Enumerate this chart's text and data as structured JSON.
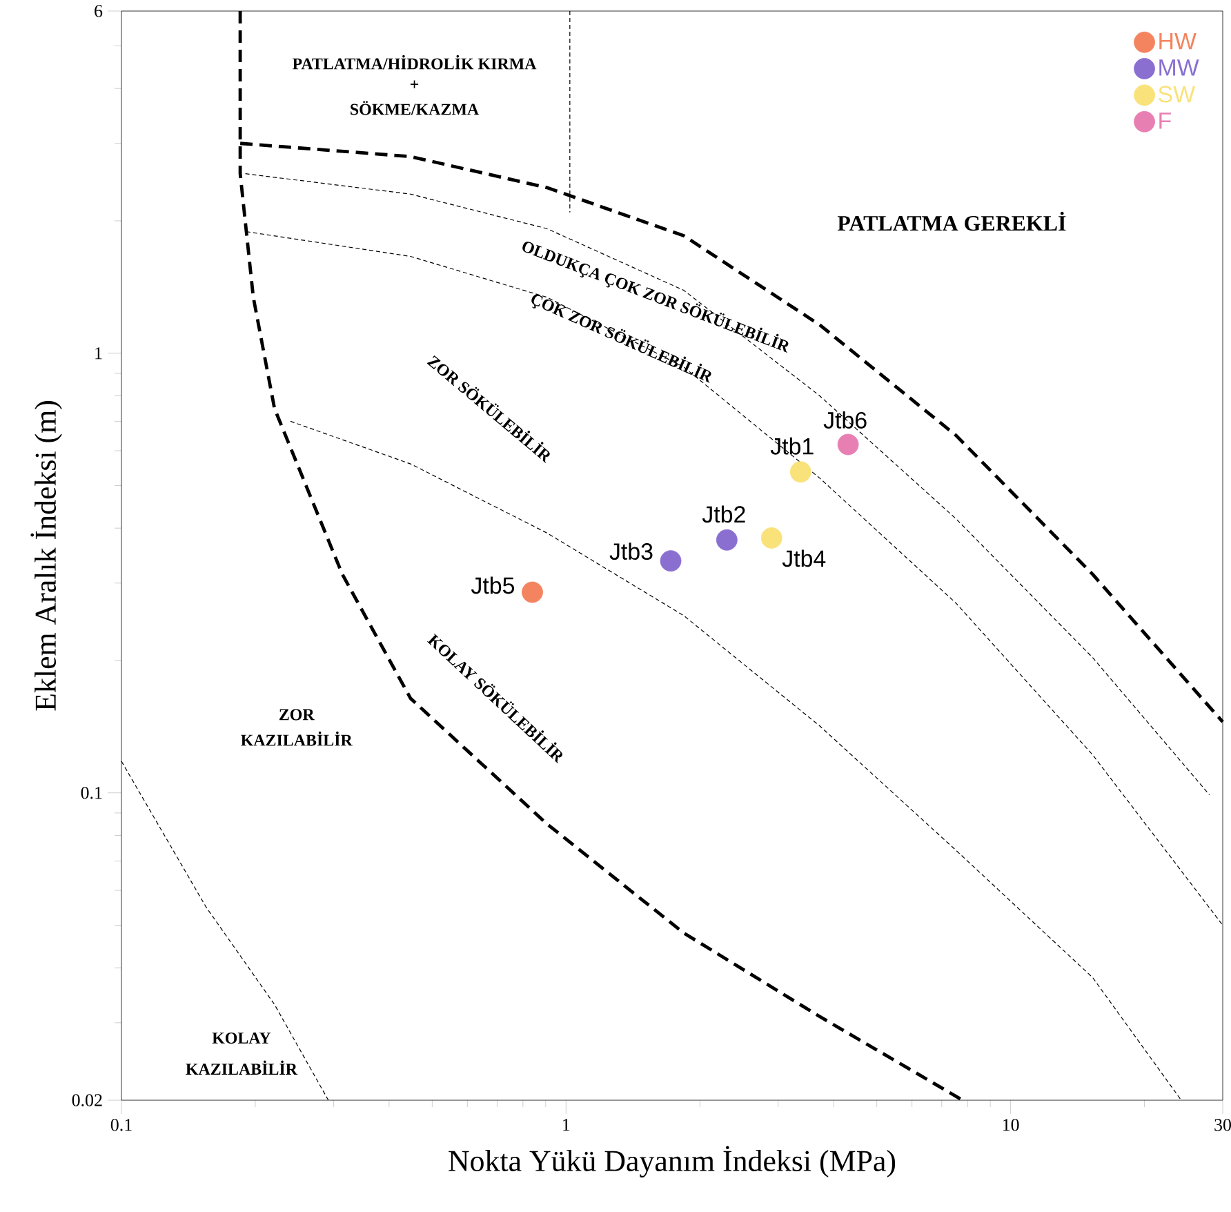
{
  "chart_data": {
    "type": "scatter",
    "xlabel": "Nokta Yükü Dayanım İndeksi (MPa)",
    "ylabel": "Eklem Aralık İndeksi (m)",
    "log": "xy",
    "grid": false,
    "legend": "top right",
    "xlim": [
      0.1,
      30
    ],
    "ylim": [
      0.02,
      6
    ],
    "xticks": [
      0.1,
      {
        "value": 0.2,
        "label": null
      },
      {
        "value": 0.3,
        "label": null
      },
      {
        "value": 0.4,
        "label": null
      },
      {
        "value": 0.5,
        "label": null
      },
      {
        "value": 0.6,
        "label": null
      },
      {
        "value": 0.7,
        "label": null
      },
      {
        "value": 0.8,
        "label": null
      },
      {
        "value": 0.9,
        "label": null
      },
      1,
      {
        "value": 2,
        "label": null
      },
      {
        "value": 3,
        "label": null
      },
      {
        "value": 4,
        "label": null
      },
      {
        "value": 5,
        "label": null
      },
      {
        "value": 6,
        "label": null
      },
      {
        "value": 7,
        "label": null
      },
      {
        "value": 8,
        "label": null
      },
      {
        "value": 9,
        "label": null
      },
      10,
      {
        "value": 20,
        "label": null
      },
      30
    ],
    "yticks": [
      0.02,
      {
        "value": 0.03,
        "label": null
      },
      {
        "value": 0.04,
        "label": null
      },
      {
        "value": 0.05,
        "label": null
      },
      {
        "value": 0.06,
        "label": null
      },
      {
        "value": 0.07,
        "label": null
      },
      {
        "value": 0.08,
        "label": null
      },
      {
        "value": 0.09,
        "label": null
      },
      0.1,
      {
        "value": 0.2,
        "label": null
      },
      {
        "value": 0.3,
        "label": null
      },
      {
        "value": 0.4,
        "label": null
      },
      {
        "value": 0.5,
        "label": null
      },
      {
        "value": 0.6,
        "label": null
      },
      {
        "value": 0.7,
        "label": null
      },
      {
        "value": 0.8,
        "label": null
      },
      {
        "value": 0.9,
        "label": null
      },
      1,
      {
        "value": 2,
        "label": null
      },
      {
        "value": 3,
        "label": null
      },
      {
        "value": 4,
        "label": null
      },
      {
        "value": 5,
        "label": null
      },
      6
    ],
    "series": [
      {
        "name": "HW",
        "color": "#f4845f",
        "x": [
          0.84
        ],
        "values": [
          0.286
        ]
      },
      {
        "name": "MW",
        "color": "#8a6fd0",
        "x": [
          1.72,
          2.3
        ],
        "values": [
          0.337,
          0.376
        ]
      },
      {
        "name": "SW",
        "color": "#f9e27a",
        "x": [
          3.37,
          2.9
        ],
        "values": [
          0.537,
          0.38
        ]
      },
      {
        "name": "F",
        "color": "#e87fb3",
        "x": [
          4.31
        ],
        "values": [
          0.62
        ]
      },
      {
        "type": "line",
        "color": "#000000",
        "line_style": "dashed",
        "marker": "none",
        "x": [
          0.185,
          0.185,
          0.198,
          0.221,
          0.314,
          0.447,
          0.906,
          1.84,
          3.72,
          7.8
        ],
        "values": [
          6,
          2.56,
          1.34,
          0.748,
          0.314,
          0.164,
          0.085,
          0.048,
          0.031,
          0.02
        ]
      },
      {
        "type": "line",
        "color": "#000000",
        "line_style": "dashed",
        "marker": "none",
        "x": [
          0.185,
          0.447,
          0.906,
          1.84,
          3.72,
          7.54,
          15.3,
          30
        ],
        "values": [
          3.0,
          2.8,
          2.38,
          1.85,
          1.16,
          0.65,
          0.314,
          0.145
        ]
      },
      {
        "type": "line",
        "color": "#000000",
        "line_style": "dashed",
        "marker": "none",
        "x": [
          0.19,
          0.447,
          0.906,
          1.84,
          3.72,
          7.54,
          15.3,
          28
        ],
        "values": [
          2.56,
          2.3,
          1.92,
          1.39,
          0.8,
          0.42,
          0.203,
          0.099
        ]
      },
      {
        "type": "line",
        "color": "#000000",
        "line_style": "dashed",
        "marker": "none",
        "x": [
          0.191,
          0.447,
          0.906,
          1.84,
          3.72,
          7.54,
          15.3,
          30
        ],
        "values": [
          1.89,
          1.66,
          1.34,
          0.93,
          0.52,
          0.27,
          0.122,
          0.05
        ]
      },
      {
        "type": "line",
        "color": "#000000",
        "line_style": "dashed",
        "marker": "none",
        "x": [
          0.24,
          0.447,
          0.906,
          1.84,
          3.72,
          7.54,
          15.3,
          24.2
        ],
        "values": [
          0.7,
          0.56,
          0.39,
          0.253,
          0.142,
          0.074,
          0.038,
          0.02
        ]
      },
      {
        "type": "line",
        "color": "#000000",
        "line_style": "dashed",
        "marker": "none",
        "x": [
          0.1,
          0.155,
          0.221,
          0.292
        ],
        "values": [
          0.118,
          0.055,
          0.033,
          0.02
        ]
      },
      {
        "type": "line",
        "color": "#000000",
        "line_style": "dashed",
        "marker": "none",
        "x": [
          1.02,
          1.02
        ],
        "values": [
          6,
          2.09
        ]
      }
    ],
    "annotations": [
      {
        "text": "Jtb5",
        "x": 0.84,
        "y": 0.286
      },
      {
        "text": "Jtb3",
        "x": 1.72,
        "y": 0.337
      },
      {
        "text": "Jtb2",
        "x": 2.3,
        "y": 0.376
      },
      {
        "text": "Jtb1",
        "x": 3.37,
        "y": 0.537
      },
      {
        "text": "Jtb4",
        "x": 2.9,
        "y": 0.38
      },
      {
        "text": "Jtb6",
        "x": 4.31,
        "y": 0.62
      },
      "PATLATMA/HİDROLİK KIRMA",
      "+",
      "SÖKME/KAZMA",
      "PATLATMA GEREKLİ",
      "OLDUKÇA ÇOK ZOR SÖKÜLEBİLİR",
      "ÇOK ZOR SÖKÜLEBİLİR",
      "ZOR SÖKÜLEBİLİR",
      "KOLAY SÖKÜLEBİLİR",
      "ZOR",
      "KAZILABİLİR",
      "KOLAY",
      "KAZILABİLİR"
    ]
  }
}
